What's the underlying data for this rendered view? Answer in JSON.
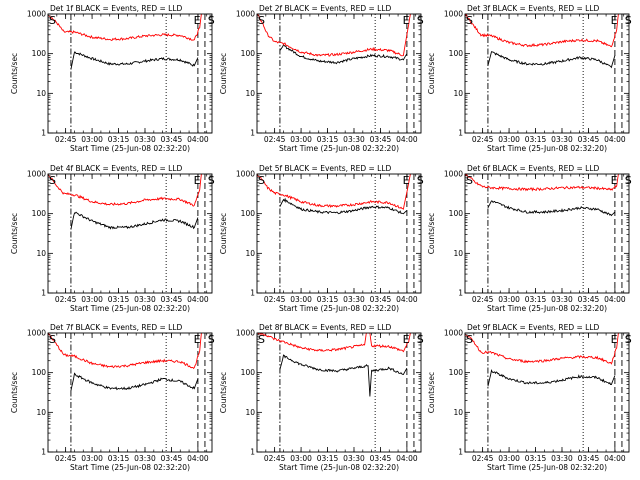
{
  "figure": {
    "event_color": "#000000",
    "lld_color": "#ff0000",
    "xlabel": "Start Time (25-Jun-08 02:32:20)",
    "ylabel": "Counts/sec"
  },
  "chart_data": [
    {
      "type": "line",
      "title": "Det 1f BLACK = Events, RED = LLD",
      "x_range": [
        "02:35",
        "04:08"
      ],
      "ylim": [
        1,
        1000
      ],
      "yscale": "log",
      "x_ticks": [
        "02:45",
        "03:00",
        "03:15",
        "03:30",
        "03:45",
        "04:00"
      ],
      "y_ticks": [
        "1",
        "10",
        "100",
        "1000"
      ],
      "markers": [
        {
          "label": "S",
          "x": "02:35"
        },
        {
          "label": "E",
          "x": "03:57"
        },
        {
          "label": "S",
          "x": "04:05"
        }
      ],
      "dashdot_lines": [
        "02:48"
      ],
      "dotted_lines": [
        "03:42"
      ],
      "dashed_lines": [
        "04:00",
        "04:04"
      ],
      "series": [
        {
          "name": "BLACK = Events",
          "x": [
            "02:48",
            "02:50",
            "03:00",
            "03:10",
            "03:20",
            "03:30",
            "03:40",
            "03:50",
            "03:58",
            "04:00"
          ],
          "values": [
            40,
            110,
            75,
            55,
            55,
            65,
            75,
            70,
            50,
            80
          ]
        },
        {
          "name": "RED = LLD",
          "x": [
            "02:35",
            "02:40",
            "02:44",
            "02:50",
            "03:00",
            "03:10",
            "03:20",
            "03:30",
            "03:40",
            "03:50",
            "03:58",
            "04:01",
            "04:02"
          ],
          "values": [
            1000,
            600,
            350,
            350,
            260,
            230,
            240,
            280,
            300,
            290,
            220,
            450,
            1000
          ]
        }
      ]
    },
    {
      "type": "line",
      "title": "Det 2f BLACK = Events, RED = LLD",
      "x_range": [
        "02:35",
        "04:08"
      ],
      "ylim": [
        1,
        1000
      ],
      "yscale": "log",
      "x_ticks": [
        "02:45",
        "03:00",
        "03:15",
        "03:30",
        "03:45",
        "04:00"
      ],
      "y_ticks": [
        "1",
        "10",
        "100",
        "1000"
      ],
      "markers": [
        {
          "label": "S",
          "x": "02:35"
        },
        {
          "label": "E",
          "x": "03:57"
        },
        {
          "label": "S",
          "x": "04:05"
        }
      ],
      "dashdot_lines": [
        "02:48"
      ],
      "dotted_lines": [
        "03:42"
      ],
      "dashed_lines": [
        "04:00",
        "04:04"
      ],
      "series": [
        {
          "name": "BLACK = Events",
          "x": [
            "02:48",
            "02:50",
            "03:00",
            "03:10",
            "03:20",
            "03:30",
            "03:40",
            "03:50",
            "03:58",
            "04:00"
          ],
          "values": [
            120,
            160,
            85,
            65,
            60,
            75,
            90,
            85,
            70,
            100
          ]
        },
        {
          "name": "RED = LLD",
          "x": [
            "02:35",
            "02:38",
            "02:41",
            "02:45",
            "02:50",
            "03:00",
            "03:10",
            "03:20",
            "03:30",
            "03:40",
            "03:50",
            "03:58",
            "04:00",
            "04:02"
          ],
          "values": [
            1000,
            600,
            300,
            200,
            180,
            110,
            90,
            95,
            110,
            130,
            120,
            90,
            300,
            1000
          ]
        }
      ]
    },
    {
      "type": "line",
      "title": "Det 3f BLACK = Events, RED = LLD",
      "x_range": [
        "02:35",
        "04:08"
      ],
      "ylim": [
        1,
        1000
      ],
      "yscale": "log",
      "x_ticks": [
        "02:45",
        "03:00",
        "03:15",
        "03:30",
        "03:45",
        "04:00"
      ],
      "y_ticks": [
        "1",
        "10",
        "100",
        "1000"
      ],
      "markers": [
        {
          "label": "S",
          "x": "02:35"
        },
        {
          "label": "E",
          "x": "03:57"
        },
        {
          "label": "S",
          "x": "04:05"
        }
      ],
      "dashdot_lines": [
        "02:48"
      ],
      "dotted_lines": [
        "03:42"
      ],
      "dashed_lines": [
        "04:00",
        "04:04"
      ],
      "series": [
        {
          "name": "BLACK = Events",
          "x": [
            "02:48",
            "02:50",
            "03:00",
            "03:10",
            "03:20",
            "03:30",
            "03:40",
            "03:50",
            "03:58",
            "04:00"
          ],
          "values": [
            50,
            110,
            70,
            55,
            55,
            65,
            80,
            70,
            45,
            90
          ]
        },
        {
          "name": "RED = LLD",
          "x": [
            "02:35",
            "02:40",
            "02:44",
            "02:50",
            "03:00",
            "03:10",
            "03:20",
            "03:30",
            "03:40",
            "03:50",
            "03:58",
            "04:01",
            "04:02"
          ],
          "values": [
            1000,
            500,
            300,
            280,
            190,
            160,
            170,
            200,
            220,
            210,
            150,
            400,
            1000
          ]
        }
      ]
    },
    {
      "type": "line",
      "title": "Det 4f BLACK = Events, RED = LLD",
      "x_range": [
        "02:35",
        "04:08"
      ],
      "ylim": [
        1,
        1000
      ],
      "yscale": "log",
      "x_ticks": [
        "02:45",
        "03:00",
        "03:15",
        "03:30",
        "03:45",
        "04:00"
      ],
      "y_ticks": [
        "1",
        "10",
        "100",
        "1000"
      ],
      "markers": [
        {
          "label": "S",
          "x": "02:35"
        },
        {
          "label": "E",
          "x": "03:57"
        },
        {
          "label": "S",
          "x": "04:05"
        }
      ],
      "dashdot_lines": [
        "02:48"
      ],
      "dotted_lines": [
        "03:42"
      ],
      "dashed_lines": [
        "04:00",
        "04:04"
      ],
      "series": [
        {
          "name": "BLACK = Events",
          "x": [
            "02:48",
            "02:50",
            "03:00",
            "03:10",
            "03:20",
            "03:30",
            "03:40",
            "03:50",
            "03:58",
            "04:00"
          ],
          "values": [
            40,
            110,
            65,
            45,
            45,
            55,
            70,
            65,
            45,
            80
          ]
        },
        {
          "name": "RED = LLD",
          "x": [
            "02:35",
            "02:40",
            "02:44",
            "02:50",
            "03:00",
            "03:10",
            "03:20",
            "03:30",
            "03:40",
            "03:50",
            "03:58",
            "04:01",
            "04:02"
          ],
          "values": [
            1000,
            500,
            320,
            300,
            200,
            170,
            180,
            220,
            240,
            230,
            160,
            400,
            1000
          ]
        }
      ]
    },
    {
      "type": "line",
      "title": "Det 5f BLACK = Events, RED = LLD",
      "x_range": [
        "02:35",
        "04:08"
      ],
      "ylim": [
        1,
        1000
      ],
      "yscale": "log",
      "x_ticks": [
        "02:45",
        "03:00",
        "03:15",
        "03:30",
        "03:45",
        "04:00"
      ],
      "y_ticks": [
        "1",
        "10",
        "100",
        "1000"
      ],
      "markers": [
        {
          "label": "S",
          "x": "02:35"
        },
        {
          "label": "E",
          "x": "03:57"
        },
        {
          "label": "S",
          "x": "04:05"
        }
      ],
      "dashdot_lines": [
        "02:48"
      ],
      "dotted_lines": [
        "03:42"
      ],
      "dashed_lines": [
        "04:00",
        "04:04"
      ],
      "series": [
        {
          "name": "BLACK = Events",
          "x": [
            "02:48",
            "02:50",
            "03:00",
            "03:10",
            "03:20",
            "03:30",
            "03:40",
            "03:50",
            "03:58",
            "04:00"
          ],
          "values": [
            150,
            230,
            130,
            110,
            105,
            120,
            150,
            140,
            100,
            120
          ]
        },
        {
          "name": "RED = LLD",
          "x": [
            "02:35",
            "02:38",
            "02:41",
            "02:45",
            "02:50",
            "03:00",
            "03:10",
            "03:20",
            "03:30",
            "03:40",
            "03:50",
            "03:58",
            "04:00",
            "04:02"
          ],
          "values": [
            1000,
            700,
            450,
            330,
            300,
            200,
            160,
            155,
            170,
            200,
            190,
            130,
            350,
            1000
          ]
        }
      ]
    },
    {
      "type": "line",
      "title": "Det 6f BLACK = Events, RED = LLD",
      "x_range": [
        "02:35",
        "04:08"
      ],
      "ylim": [
        1,
        1000
      ],
      "yscale": "log",
      "x_ticks": [
        "02:45",
        "03:00",
        "03:15",
        "03:30",
        "03:45",
        "04:00"
      ],
      "y_ticks": [
        "1",
        "10",
        "100",
        "1000"
      ],
      "markers": [
        {
          "label": "S",
          "x": "02:35"
        },
        {
          "label": "E",
          "x": "03:57"
        },
        {
          "label": "S",
          "x": "04:05"
        }
      ],
      "dashdot_lines": [
        "02:48"
      ],
      "dotted_lines": [
        "03:42"
      ],
      "dashed_lines": [
        "04:00",
        "04:04"
      ],
      "series": [
        {
          "name": "BLACK = Events",
          "x": [
            "02:48",
            "02:50",
            "03:00",
            "03:10",
            "03:20",
            "03:30",
            "03:40",
            "03:50",
            "03:58",
            "04:00"
          ],
          "values": [
            140,
            210,
            140,
            110,
            110,
            120,
            140,
            130,
            90,
            110
          ]
        },
        {
          "name": "RED = LLD",
          "x": [
            "02:35",
            "02:38",
            "02:41",
            "02:45",
            "02:50",
            "03:00",
            "03:10",
            "03:20",
            "03:30",
            "03:40",
            "03:50",
            "03:58",
            "04:01",
            "04:02"
          ],
          "values": [
            1000,
            800,
            600,
            480,
            450,
            430,
            410,
            420,
            450,
            460,
            440,
            400,
            500,
            1000
          ]
        }
      ]
    },
    {
      "type": "line",
      "title": "Det 7f BLACK = Events, RED = LLD",
      "x_range": [
        "02:35",
        "04:08"
      ],
      "ylim": [
        1,
        1000
      ],
      "yscale": "log",
      "x_ticks": [
        "02:45",
        "03:00",
        "03:15",
        "03:30",
        "03:45",
        "04:00"
      ],
      "y_ticks": [
        "1",
        "10",
        "100",
        "1000"
      ],
      "markers": [
        {
          "label": "S",
          "x": "02:35"
        },
        {
          "label": "E",
          "x": "03:57"
        },
        {
          "label": "S",
          "x": "04:05"
        }
      ],
      "dashdot_lines": [
        "02:48"
      ],
      "dotted_lines": [
        "03:42"
      ],
      "dashed_lines": [
        "04:00",
        "04:04"
      ],
      "series": [
        {
          "name": "BLACK = Events",
          "x": [
            "02:48",
            "02:50",
            "03:00",
            "03:10",
            "03:20",
            "03:30",
            "03:40",
            "03:50",
            "03:58",
            "04:00"
          ],
          "values": [
            35,
            90,
            55,
            40,
            40,
            50,
            70,
            60,
            40,
            70
          ]
        },
        {
          "name": "RED = LLD",
          "x": [
            "02:35",
            "02:40",
            "02:44",
            "02:50",
            "03:00",
            "03:10",
            "03:20",
            "03:30",
            "03:40",
            "03:50",
            "03:58",
            "04:01",
            "04:02"
          ],
          "values": [
            1000,
            500,
            280,
            260,
            170,
            140,
            150,
            180,
            200,
            190,
            130,
            350,
            1000
          ]
        }
      ]
    },
    {
      "type": "line",
      "title": "Det 8f BLACK = Events, RED = LLD",
      "x_range": [
        "02:35",
        "04:08"
      ],
      "ylim": [
        1,
        1000
      ],
      "yscale": "log",
      "x_ticks": [
        "02:45",
        "03:00",
        "03:15",
        "03:30",
        "03:45",
        "04:00"
      ],
      "y_ticks": [
        "1",
        "10",
        "100",
        "1000"
      ],
      "markers": [
        {
          "label": "S",
          "x": "02:35"
        },
        {
          "label": "E",
          "x": "03:57"
        },
        {
          "label": "S",
          "x": "04:05"
        }
      ],
      "dashdot_lines": [
        "02:48"
      ],
      "dotted_lines": [
        "03:42"
      ],
      "dashed_lines": [
        "04:00",
        "04:04"
      ],
      "series": [
        {
          "name": "BLACK = Events",
          "x": [
            "02:48",
            "02:50",
            "03:00",
            "03:10",
            "03:20",
            "03:30",
            "03:38",
            "03:39",
            "03:40",
            "03:50",
            "03:58",
            "04:00"
          ],
          "values": [
            120,
            260,
            160,
            120,
            110,
            130,
            150,
            25,
            110,
            130,
            90,
            130
          ]
        },
        {
          "name": "RED = LLD",
          "x": [
            "02:35",
            "02:40",
            "02:45",
            "02:50",
            "03:00",
            "03:10",
            "03:20",
            "03:30",
            "03:36",
            "03:37",
            "03:39",
            "03:40",
            "03:50",
            "03:58",
            "04:01",
            "04:02"
          ],
          "values": [
            1000,
            900,
            700,
            600,
            420,
            360,
            380,
            450,
            500,
            1000,
            1000,
            480,
            460,
            350,
            600,
            1000
          ]
        }
      ]
    },
    {
      "type": "line",
      "title": "Det 9f BLACK = Events, RED = LLD",
      "x_range": [
        "02:35",
        "04:08"
      ],
      "ylim": [
        1,
        1000
      ],
      "yscale": "log",
      "x_ticks": [
        "02:45",
        "03:00",
        "03:15",
        "03:30",
        "03:45",
        "04:00"
      ],
      "y_ticks": [
        "1",
        "10",
        "100",
        "1000"
      ],
      "markers": [
        {
          "label": "S",
          "x": "02:35"
        },
        {
          "label": "E",
          "x": "03:57"
        },
        {
          "label": "S",
          "x": "04:05"
        }
      ],
      "dashdot_lines": [
        "02:48"
      ],
      "dotted_lines": [
        "03:42"
      ],
      "dashed_lines": [
        "04:00",
        "04:04"
      ],
      "series": [
        {
          "name": "BLACK = Events",
          "x": [
            "02:48",
            "02:50",
            "03:00",
            "03:10",
            "03:20",
            "03:30",
            "03:40",
            "03:50",
            "03:58",
            "04:00"
          ],
          "values": [
            45,
            110,
            70,
            55,
            55,
            65,
            80,
            75,
            50,
            85
          ]
        },
        {
          "name": "RED = LLD",
          "x": [
            "02:35",
            "02:40",
            "02:44",
            "02:50",
            "03:00",
            "03:10",
            "03:20",
            "03:30",
            "03:40",
            "03:50",
            "03:58",
            "04:01",
            "04:02"
          ],
          "values": [
            1000,
            600,
            330,
            320,
            220,
            190,
            200,
            230,
            250,
            240,
            170,
            420,
            1000
          ]
        }
      ]
    }
  ]
}
